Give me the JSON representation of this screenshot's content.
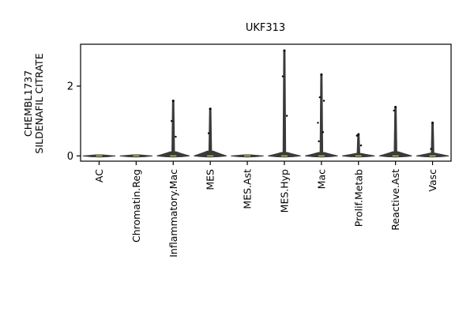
{
  "chart_data": {
    "type": "violin",
    "title": "UKF313",
    "ylabel_lines": [
      "CHEMBL1737",
      "SILDENAFIL CITRATE"
    ],
    "xlabel": "",
    "ylim": [
      -0.15,
      3.2
    ],
    "yticks": [
      0,
      2
    ],
    "grid": false,
    "categories": [
      "AC",
      "Chromatin.Reg",
      "Inflammatory.Mac",
      "MES",
      "MES.Ast",
      "MES.Hyp",
      "Mac",
      "Prolif.Metab",
      "Reactive.Ast",
      "Vasc"
    ],
    "series": [
      {
        "category": "AC",
        "max": 0.0,
        "bulk_width": 0.03,
        "outliers": []
      },
      {
        "category": "Chromatin.Reg",
        "max": 0.0,
        "bulk_width": 0.03,
        "outliers": []
      },
      {
        "category": "Inflammatory.Mac",
        "max": 1.58,
        "bulk_width": 0.12,
        "outliers": [
          1.0,
          0.55
        ]
      },
      {
        "category": "MES",
        "max": 1.35,
        "bulk_width": 0.14,
        "outliers": [
          0.65
        ]
      },
      {
        "category": "MES.Ast",
        "max": 0.0,
        "bulk_width": 0.03,
        "outliers": []
      },
      {
        "category": "MES.Hyp",
        "max": 3.02,
        "bulk_width": 0.1,
        "outliers": [
          2.28,
          1.15
        ]
      },
      {
        "category": "Mac",
        "max": 2.33,
        "bulk_width": 0.1,
        "outliers": [
          1.68,
          1.58,
          0.95,
          0.68,
          0.42
        ]
      },
      {
        "category": "Prolif.Metab",
        "max": 0.62,
        "bulk_width": 0.07,
        "outliers": [
          0.58,
          0.3
        ]
      },
      {
        "category": "Reactive.Ast",
        "max": 1.4,
        "bulk_width": 0.12,
        "outliers": [
          1.3
        ]
      },
      {
        "category": "Vasc",
        "max": 0.95,
        "bulk_width": 0.08,
        "outliers": [
          0.2
        ]
      }
    ],
    "colors": {
      "violin": "#3a3a3a",
      "median": "#c8c040",
      "points": "#000000",
      "axis": "#000000"
    }
  }
}
